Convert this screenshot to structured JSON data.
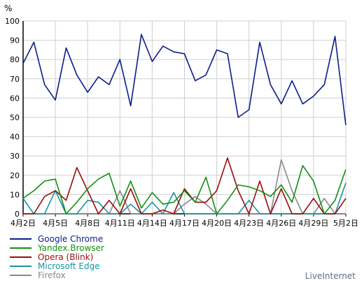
{
  "chart_data": {
    "type": "line",
    "ylabel": "%",
    "ylim": [
      0,
      100
    ],
    "yticks": [
      "0",
      "10",
      "20",
      "30",
      "40",
      "50",
      "60",
      "70",
      "80",
      "90",
      "100"
    ],
    "xticks": [
      "4月2日",
      "4月5日",
      "4月8日",
      "4月11日",
      "4月14日",
      "4月17日",
      "4月20日",
      "4月23日",
      "4月26日",
      "4月29日",
      "5月2日"
    ],
    "x": [
      "4月2日",
      "4月3日",
      "4月4日",
      "4月5日",
      "4月6日",
      "4月7日",
      "4月8日",
      "4月9日",
      "4月10日",
      "4月11日",
      "4月12日",
      "4月13日",
      "4月14日",
      "4月15日",
      "4月16日",
      "4月17日",
      "4月18日",
      "4月19日",
      "4月20日",
      "4月21日",
      "4月22日",
      "4月23日",
      "4月24日",
      "4月25日",
      "4月26日",
      "4月27日",
      "4月28日",
      "4月29日",
      "4月30日",
      "5月1日",
      "5月2日"
    ],
    "grid": true,
    "legend": "bottom-left",
    "series": [
      {
        "name": "Google Chrome",
        "color": "#0a1d8a",
        "values": [
          78,
          89,
          67,
          59,
          86,
          72,
          63,
          71,
          67,
          80,
          56,
          93,
          79,
          87,
          84,
          83,
          69,
          72,
          85,
          83,
          50,
          54,
          89,
          67,
          57,
          69,
          57,
          61,
          67,
          92,
          46
        ]
      },
      {
        "name": "Yandex.Browser",
        "color": "#129012",
        "values": [
          8,
          12,
          17,
          18,
          0,
          6,
          13,
          18,
          21,
          4,
          17,
          3,
          11,
          5,
          6,
          12,
          6,
          19,
          0,
          7,
          15,
          14,
          12,
          9,
          15,
          6,
          25,
          17,
          0,
          7,
          23
        ]
      },
      {
        "name": "Opera (Blink)",
        "color": "#9a0c0c",
        "values": [
          0,
          0,
          9,
          12,
          7,
          24,
          12,
          0,
          7,
          0,
          13,
          0,
          0,
          2,
          0,
          13,
          6,
          6,
          12,
          29,
          12,
          0,
          17,
          0,
          13,
          0,
          0,
          8,
          0,
          0,
          8
        ]
      },
      {
        "name": "Microsoft Edge",
        "color": "#1a95a0",
        "values": [
          8,
          0,
          0,
          12,
          0,
          0,
          7,
          6,
          0,
          0,
          5,
          0,
          6,
          0,
          11,
          0,
          0,
          0,
          0,
          0,
          0,
          7,
          0,
          0,
          0,
          0,
          0,
          0,
          0,
          0,
          16
        ]
      },
      {
        "name": "Firefox",
        "color": "#8a8a8a",
        "values": [
          0,
          0,
          0,
          0,
          0,
          0,
          0,
          0,
          0,
          12,
          0,
          0,
          0,
          0,
          0,
          5,
          9,
          5,
          0,
          0,
          0,
          0,
          0,
          0,
          28,
          12,
          0,
          0,
          8,
          0,
          0
        ]
      }
    ]
  },
  "branding": {
    "text": "LiveInternet"
  },
  "colors": {
    "axis": "#000000",
    "grid": "#cfcfcf",
    "background": "#ffffff"
  }
}
